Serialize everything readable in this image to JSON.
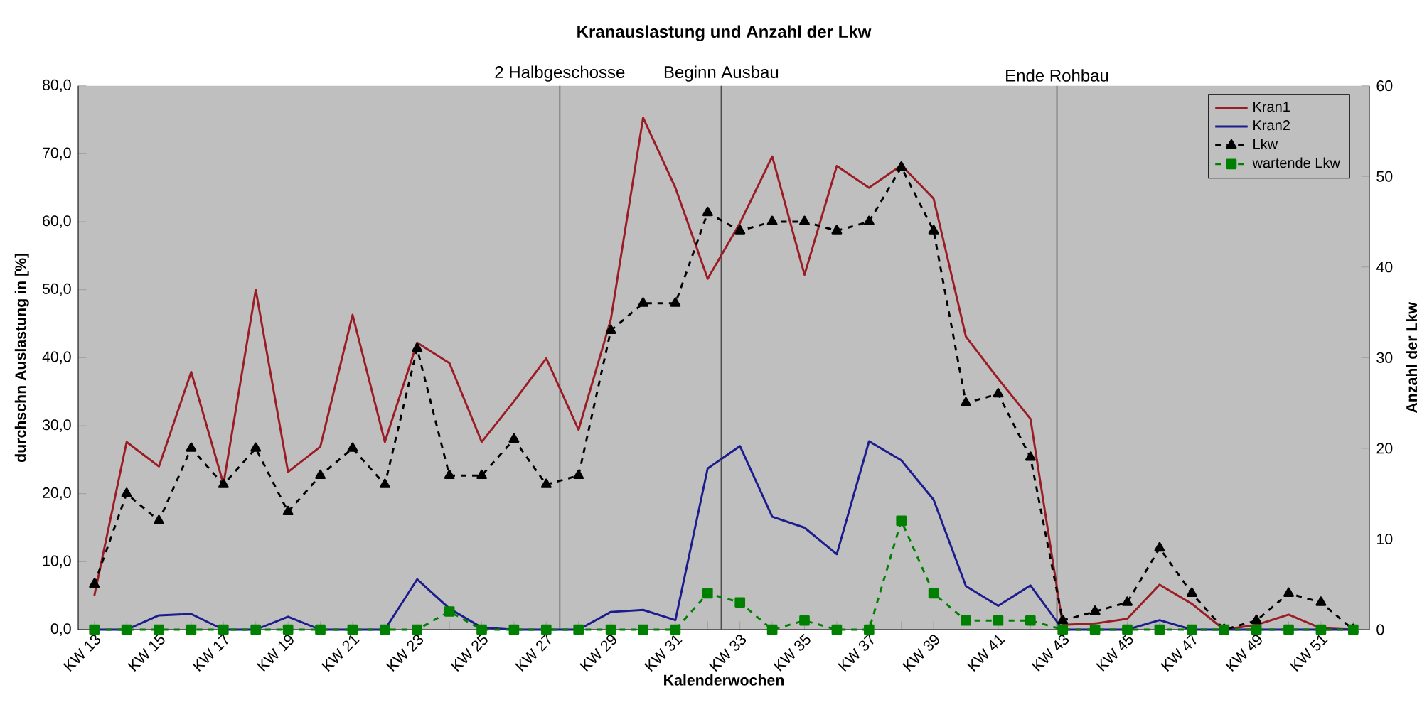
{
  "chart_data": {
    "type": "line",
    "title": "Kranauslastung und Anzahl der Lkw",
    "xlabel": "Kalenderwochen",
    "ylabel": "durchschn Auslastung in [%]",
    "y2label": "Anzahl der Lkw",
    "categories": [
      "KW 13",
      null,
      "KW 15",
      null,
      "KW 17",
      null,
      "KW 19",
      null,
      "KW 21",
      null,
      "KW 23",
      null,
      "KW 25",
      null,
      "KW 27",
      null,
      "KW 29",
      null,
      "KW 31",
      null,
      "KW 33",
      null,
      "KW 35",
      null,
      "KW 37",
      null,
      "KW 39",
      null,
      "KW 41",
      null,
      "KW 43",
      null,
      "KW 45",
      null,
      "KW 47",
      null,
      "KW 49",
      null,
      "KW 51",
      null
    ],
    "ylim": [
      0,
      80
    ],
    "yticks": [
      {
        "value": 0,
        "label": "0,0"
      },
      {
        "value": 10,
        "label": "10,0"
      },
      {
        "value": 20,
        "label": "20,0"
      },
      {
        "value": 30,
        "label": "30,0"
      },
      {
        "value": 40,
        "label": "40,0"
      },
      {
        "value": 50,
        "label": "50,0"
      },
      {
        "value": 60,
        "label": "60,0"
      },
      {
        "value": 70,
        "label": "70,0"
      },
      {
        "value": 80,
        "label": "80,0"
      }
    ],
    "y2lim": [
      0,
      60
    ],
    "y2ticks": [
      0,
      10,
      20,
      30,
      40,
      50,
      60
    ],
    "grid": false,
    "legend": "top right",
    "series": [
      {
        "name": "Kran1",
        "color": "#9b1c24",
        "marker": "none",
        "line_style": "solid",
        "values": [
          5,
          27.6,
          24,
          37.9,
          21.4,
          50,
          23.2,
          26.9,
          46.3,
          27.6,
          42.2,
          39.2,
          27.6,
          33.6,
          39.9,
          29.4,
          45.6,
          75.3,
          65,
          51.6,
          59.8,
          69.6,
          52.2,
          68.2,
          65,
          68.3,
          63.4,
          43.1,
          36.9,
          31,
          0.7,
          0.9,
          1.6,
          6.6,
          3.8,
          0,
          0.7,
          2.2,
          0.2,
          0
        ]
      },
      {
        "name": "Kran2",
        "color": "#1c1c8c",
        "marker": "none",
        "line_style": "solid",
        "values": [
          0,
          0,
          2.1,
          2.3,
          0,
          0,
          1.9,
          0,
          0,
          0,
          7.4,
          3.1,
          0.3,
          0,
          0,
          0,
          2.6,
          2.9,
          1.4,
          23.7,
          27,
          16.6,
          15,
          11.1,
          27.7,
          24.9,
          19.1,
          6.4,
          3.5,
          6.5,
          0,
          0,
          0,
          1.4,
          0,
          0,
          0,
          0,
          0,
          0
        ]
      },
      {
        "name": "Lkw",
        "color": "#000000",
        "marker": "triangle",
        "line_style": "dashed",
        "axis": "y2",
        "values": [
          5,
          15,
          12,
          20,
          16,
          20,
          13,
          17,
          20,
          16,
          31,
          17,
          17,
          21,
          16,
          17,
          33,
          36,
          36,
          46,
          44,
          45,
          45,
          44,
          45,
          51,
          44,
          25,
          26,
          19,
          1,
          2,
          3,
          9,
          4,
          0,
          1,
          4,
          3,
          0
        ]
      },
      {
        "name": "wartende Lkw",
        "color": "#008000",
        "marker": "square",
        "line_style": "dashed",
        "axis": "y2",
        "values": [
          0,
          0,
          0,
          0,
          0,
          0,
          0,
          0,
          0,
          0,
          0,
          2,
          0,
          0,
          0,
          0,
          0,
          0,
          0,
          4,
          3,
          0,
          1,
          0,
          0,
          12,
          4,
          1,
          1,
          1,
          0,
          0,
          0,
          0,
          0,
          0,
          0,
          0,
          0,
          0
        ]
      }
    ],
    "annotations": [
      "2 Halbgeschosse",
      "Beginn Ausbau",
      "Ende Rohbau"
    ]
  }
}
